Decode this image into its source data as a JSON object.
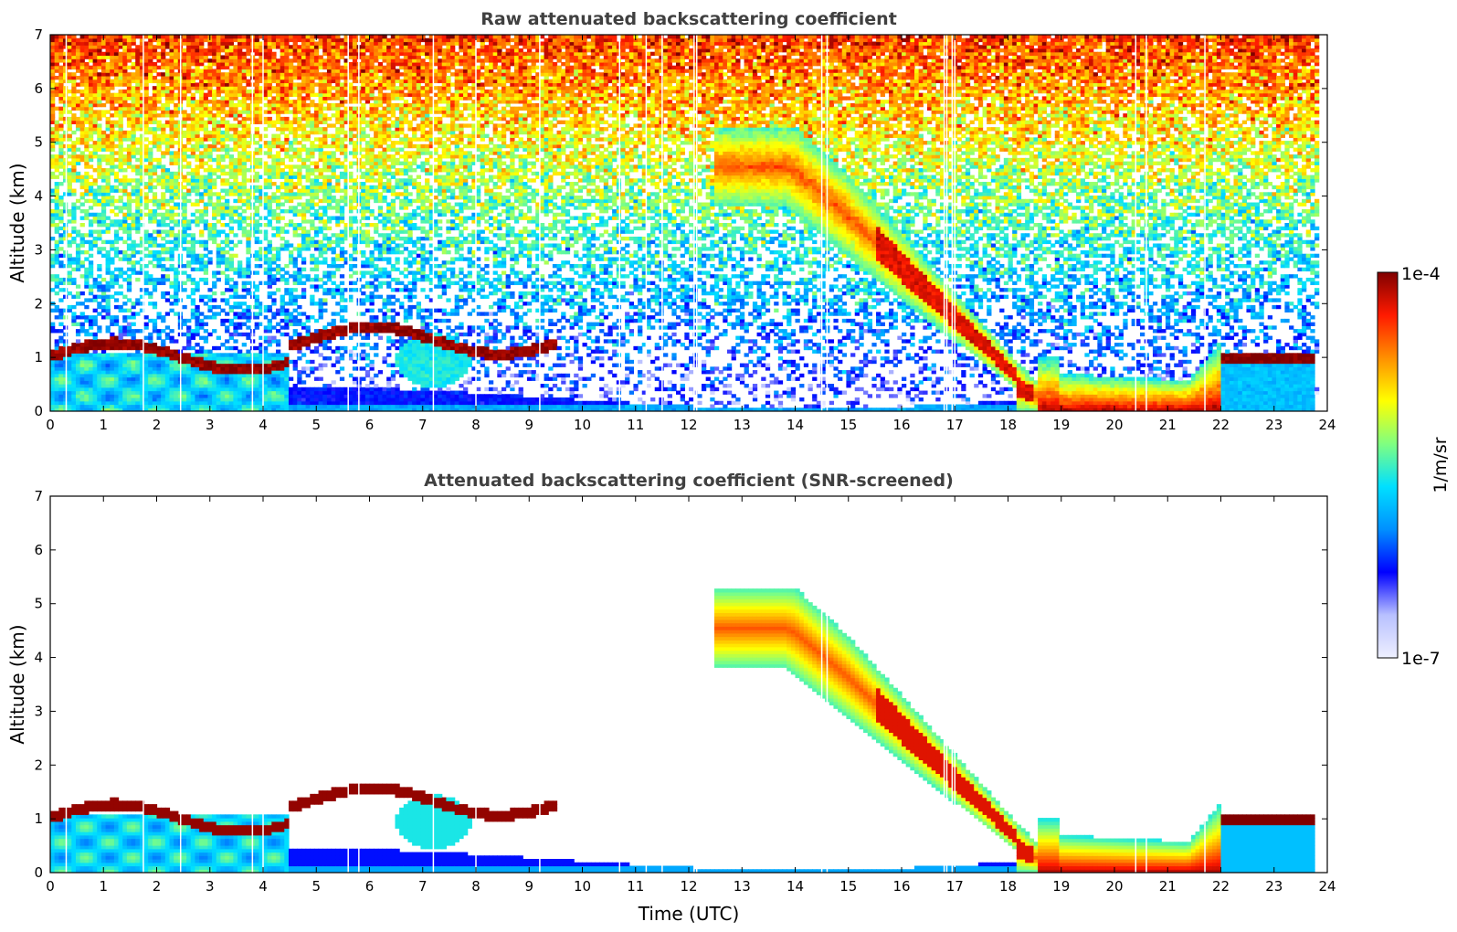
{
  "chart_data": [
    {
      "type": "heatmap",
      "title": "Raw attenuated backscattering coefficient",
      "xlabel": "",
      "ylabel": "Altitude (km)",
      "xlim": [
        0,
        24
      ],
      "ylim": [
        0,
        7
      ],
      "xticks": [
        "0",
        "1",
        "2",
        "3",
        "4",
        "5",
        "6",
        "7",
        "8",
        "9",
        "10",
        "11",
        "12",
        "13",
        "14",
        "15",
        "16",
        "17",
        "18",
        "19",
        "20",
        "21",
        "22",
        "23",
        "24"
      ],
      "yticks": [
        "0",
        "1",
        "2",
        "3",
        "4",
        "5",
        "6",
        "7"
      ],
      "data_end_time": 23.8,
      "noise": true,
      "gaps_utc": [
        0.3,
        1.75,
        2.45,
        3.8,
        4.0,
        5.6,
        5.8,
        7.2,
        8.0,
        9.2,
        10.7,
        11.2,
        11.5,
        12.1,
        12.15,
        14.5,
        14.6,
        16.8,
        16.85,
        16.95,
        17.0,
        20.4,
        20.6,
        21.7
      ],
      "features": [
        {
          "name": "boundary-layer cloud",
          "time": [
            0,
            9.5
          ],
          "altitude_km": [
            0.8,
            1.5
          ],
          "log10_beta": -4.0
        },
        {
          "name": "descending cirrus / precipitation",
          "time": [
            12.5,
            19.0
          ],
          "altitude_km": [
            0.0,
            5.5
          ],
          "log10_beta": -4.5
        },
        {
          "name": "rain near surface",
          "time": [
            19.0,
            22.0
          ],
          "altitude_km": [
            0.0,
            0.3
          ],
          "log10_beta": -4.0
        },
        {
          "name": "low cloud",
          "time": [
            22.0,
            23.8
          ],
          "altitude_km": [
            0.9,
            1.1
          ],
          "log10_beta": -4.0
        },
        {
          "name": "boundary-layer aerosol",
          "time": [
            0,
            18.2
          ],
          "altitude_km": [
            0.0,
            0.5
          ],
          "log10_beta": -6.4
        }
      ]
    },
    {
      "type": "heatmap",
      "title": "Attenuated backscattering coefficient (SNR-screened)",
      "xlabel": "Time (UTC)",
      "ylabel": "Altitude (km)",
      "xlim": [
        0,
        24
      ],
      "ylim": [
        0,
        7
      ],
      "xticks": [
        "0",
        "1",
        "2",
        "3",
        "4",
        "5",
        "6",
        "7",
        "8",
        "9",
        "10",
        "11",
        "12",
        "13",
        "14",
        "15",
        "16",
        "17",
        "18",
        "19",
        "20",
        "21",
        "22",
        "23",
        "24"
      ],
      "yticks": [
        "0",
        "1",
        "2",
        "3",
        "4",
        "5",
        "6",
        "7"
      ],
      "data_end_time": 23.8,
      "noise": false,
      "gaps_utc": [
        0.3,
        1.75,
        2.45,
        3.8,
        4.0,
        5.6,
        5.8,
        7.2,
        8.0,
        9.2,
        10.7,
        11.2,
        11.5,
        12.1,
        12.15,
        14.5,
        14.6,
        16.8,
        16.85,
        16.95,
        17.0,
        20.4,
        20.6,
        21.7
      ]
    }
  ],
  "colorbar": {
    "label": "1/m/sr",
    "min_label": "1e-7",
    "max_label": "1e-4",
    "log10_range": [
      -7,
      -4
    ],
    "colors": [
      "#eef0ff",
      "#b8c0ff",
      "#0000ff",
      "#0090ff",
      "#00e0ff",
      "#80ff80",
      "#ffff00",
      "#ff9000",
      "#ff1a00",
      "#800000"
    ]
  }
}
